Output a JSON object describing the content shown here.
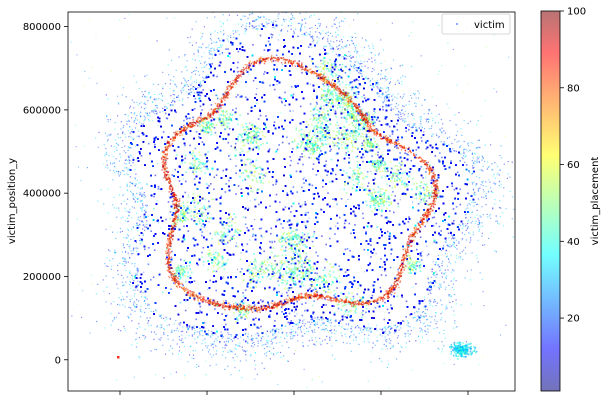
{
  "chart_data": {
    "type": "scatter",
    "title": "",
    "xlabel": "",
    "ylabel": "victim_position_y",
    "ylim": [
      -75000,
      835000
    ],
    "y_ticks": [
      0,
      200000,
      400000,
      600000,
      800000
    ],
    "y_tick_labels": [
      "0",
      "200000",
      "400000",
      "600000",
      "800000"
    ],
    "x_tick_count": 5,
    "x_tick_labels_visible": false,
    "legend": {
      "placement": "top-right",
      "entries": [
        "victim"
      ]
    },
    "grid": false,
    "colorbar": {
      "label": "victim_placement",
      "colormap": "jet",
      "alpha": 0.5,
      "range": [
        1,
        100
      ],
      "ticks": [
        20,
        40,
        60,
        80,
        100
      ],
      "tick_labels": [
        "20",
        "40",
        "60",
        "80",
        "100"
      ]
    },
    "series": [
      {
        "name": "victim",
        "approx_point_count": "hundreds of thousands",
        "y_range": [
          -10000,
          760000
        ],
        "dense_region_y": [
          60000,
          740000
        ],
        "high_placement_ring_y": [
          105000,
          700000
        ],
        "note_outlier_cluster_y": [
          10000,
          40000
        ]
      }
    ],
    "colors": {
      "low": "#00007f",
      "mid_low": "#0000ff",
      "mid": "#00ffff",
      "mid_high": "#ffff00",
      "high": "#ff0000"
    }
  }
}
